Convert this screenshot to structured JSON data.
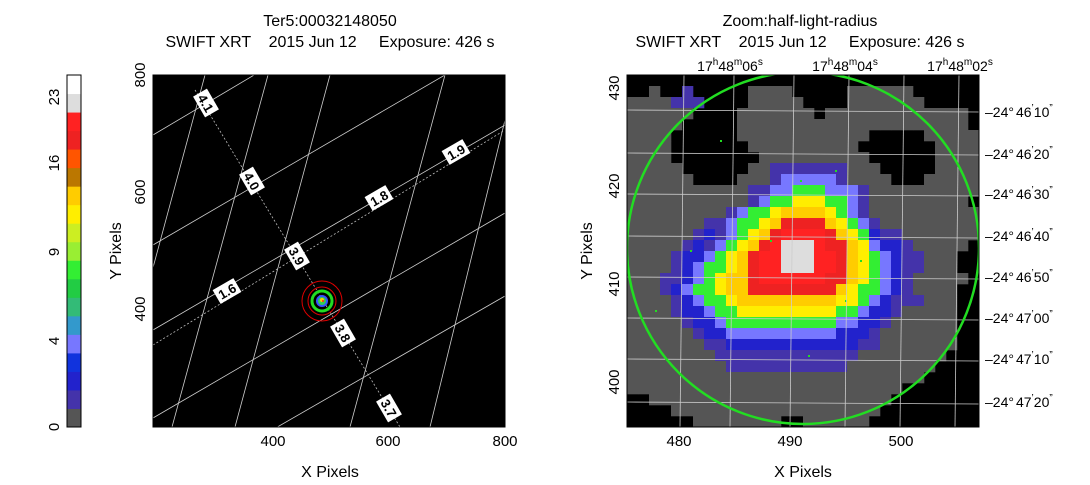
{
  "left_panel": {
    "title_line1": "Ter5:00032148050",
    "title_line2": "SWIFT XRT    2015 Jun 12     Exposure: 426 s",
    "xlabel": "X Pixels",
    "ylabel": "Y Pixels",
    "x_ticks": [
      "400",
      "600",
      "800"
    ],
    "y_ticks": [
      "800",
      "600",
      "400"
    ],
    "grid_labels": [
      "4.1",
      "4.0",
      "3.9",
      "3.8",
      "3.7",
      "1.9",
      "1.8",
      "1.6"
    ]
  },
  "right_panel": {
    "title_line1": "Zoom:half-light-radius",
    "title_line2": "SWIFT XRT    2015 Jun 12     Exposure: 426 s",
    "xlabel": "X Pixels",
    "ylabel": "Y Pixels",
    "x_ticks": [
      "480",
      "490",
      "500"
    ],
    "y_ticks": [
      "430",
      "420",
      "410",
      "400"
    ],
    "ra_labels": [
      {
        "h": "17",
        "m": "48",
        "s": "06"
      },
      {
        "h": "17",
        "m": "48",
        "s": "04"
      },
      {
        "h": "17",
        "m": "48",
        "s": "02"
      }
    ],
    "dec_labels": [
      {
        "d": "–24°",
        "m": "46",
        "s": "10"
      },
      {
        "d": "–24°",
        "m": "46",
        "s": "20"
      },
      {
        "d": "–24°",
        "m": "46",
        "s": "30"
      },
      {
        "d": "–24°",
        "m": "46",
        "s": "40"
      },
      {
        "d": "–24°",
        "m": "46",
        "s": "50"
      },
      {
        "d": "–24°",
        "m": "47",
        "s": "00"
      },
      {
        "d": "–24°",
        "m": "47",
        "s": "10"
      },
      {
        "d": "–24°",
        "m": "47",
        "s": "20"
      }
    ]
  },
  "colorbar": {
    "ticks": [
      "0",
      "4",
      "9",
      "16",
      "23"
    ],
    "colors": [
      "#555555",
      "#4433aa",
      "#2222cc",
      "#1133dd",
      "#7777ff",
      "#3399cc",
      "#33bb77",
      "#22cc44",
      "#33ee33",
      "#99ee33",
      "#ccee22",
      "#ffee00",
      "#ffcc00",
      "#bb7700",
      "#ff5500",
      "#ee2222",
      "#ff2222",
      "#dddddd",
      "#ffffff"
    ]
  }
}
